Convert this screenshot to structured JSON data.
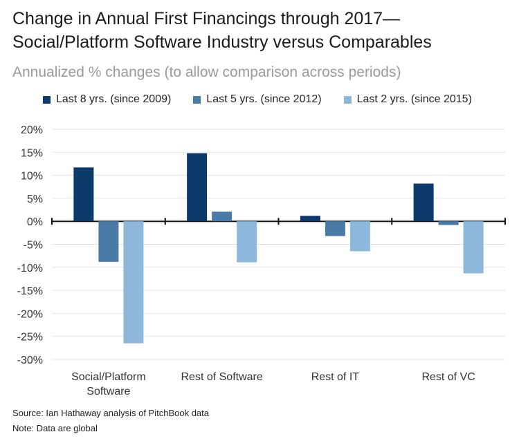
{
  "header": {
    "title_line1": "Change in Annual First Financings through 2017—",
    "title_line2": "Social/Platform Software Industry versus Comparables",
    "subtitle": "Annualized % changes (to allow comparison across periods)"
  },
  "legend": [
    {
      "label": "Last 8 yrs. (since 2009)",
      "color": "#0b3a6b"
    },
    {
      "label": "Last 5 yrs. (since 2012)",
      "color": "#4a7ba6"
    },
    {
      "label": "Last 2 yrs. (since 2015)",
      "color": "#8db8db"
    }
  ],
  "chart_data": {
    "type": "bar",
    "categories": [
      "Social/Platform Software",
      "Rest of Software",
      "Rest of IT",
      "Rest of VC"
    ],
    "category_lines": [
      [
        "Social/Platform",
        "Software"
      ],
      [
        "Rest of Software"
      ],
      [
        "Rest of IT"
      ],
      [
        "Rest of VC"
      ]
    ],
    "series": [
      {
        "name": "Last 8 yrs. (since 2009)",
        "values": [
          11.7,
          14.8,
          1.2,
          8.2
        ],
        "color": "#0b3a6b"
      },
      {
        "name": "Last 5 yrs. (since 2012)",
        "values": [
          -8.8,
          2.1,
          -3.2,
          -0.8
        ],
        "color": "#4a7ba6"
      },
      {
        "name": "Last 2 yrs. (since 2015)",
        "values": [
          -26.5,
          -8.9,
          -6.5,
          -11.3
        ],
        "color": "#8db8db"
      }
    ],
    "ylim": [
      -30,
      20
    ],
    "yticks": [
      "20%",
      "15%",
      "10%",
      "5%",
      "0%",
      "-5%",
      "-10%",
      "-15%",
      "-20%",
      "-25%",
      "-30%"
    ],
    "grid": true
  },
  "footer": {
    "source": "Source: Ian Hathaway analysis of PitchBook data",
    "note": "Note: Data are global"
  }
}
